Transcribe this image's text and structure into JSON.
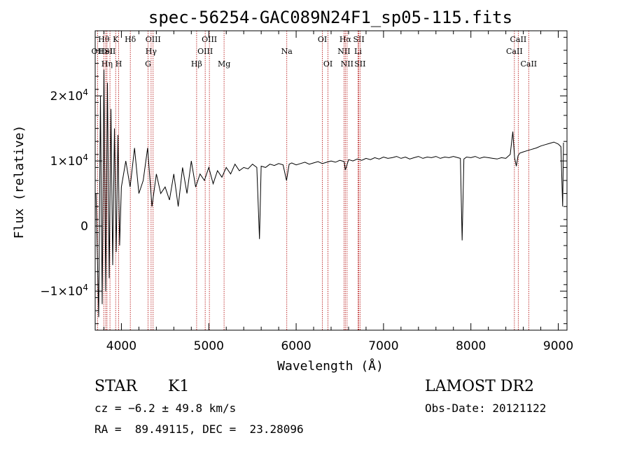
{
  "chart_data": {
    "type": "line",
    "title": "spec-56254-GAC089N24F1_sp05-115.fits",
    "xlabel": "Wavelength (Å)",
    "ylabel": "Flux (relative)",
    "xlim": [
      3700,
      9100
    ],
    "ylim": [
      -16000,
      30000
    ],
    "x_ticks": [
      4000,
      5000,
      6000,
      7000,
      8000,
      9000
    ],
    "x_tick_labels": [
      "4000",
      "5000",
      "6000",
      "7000",
      "8000",
      "9000"
    ],
    "y_ticks": [
      -10000,
      0,
      10000,
      20000
    ],
    "y_tick_labels": [
      {
        "mant": "−1×10",
        "exp": "4"
      },
      {
        "mant": "0",
        "exp": ""
      },
      {
        "mant": "1×10",
        "exp": "4"
      },
      {
        "mant": "2×10",
        "exp": "4"
      }
    ],
    "grid": false,
    "series": [
      {
        "color": "#000000",
        "x": [
          3710,
          3740,
          3760,
          3780,
          3800,
          3820,
          3840,
          3860,
          3880,
          3900,
          3920,
          3940,
          3960,
          3980,
          4000,
          4050,
          4100,
          4150,
          4200,
          4250,
          4300,
          4350,
          4400,
          4450,
          4500,
          4550,
          4600,
          4650,
          4700,
          4750,
          4800,
          4850,
          4900,
          4950,
          5000,
          5050,
          5100,
          5150,
          5200,
          5250,
          5300,
          5350,
          5400,
          5450,
          5500,
          5550,
          5580,
          5600,
          5650,
          5700,
          5750,
          5800,
          5850,
          5890,
          5920,
          5950,
          6000,
          6050,
          6100,
          6150,
          6200,
          6250,
          6300,
          6350,
          6400,
          6450,
          6500,
          6550,
          6563,
          6600,
          6650,
          6700,
          6750,
          6800,
          6850,
          6900,
          6950,
          7000,
          7050,
          7100,
          7150,
          7200,
          7250,
          7300,
          7350,
          7400,
          7450,
          7500,
          7550,
          7600,
          7650,
          7700,
          7750,
          7800,
          7850,
          7880,
          7900,
          7920,
          7950,
          8000,
          8050,
          8100,
          8150,
          8200,
          8250,
          8300,
          8350,
          8400,
          8450,
          8480,
          8500,
          8520,
          8540,
          8560,
          8600,
          8650,
          8700,
          8750,
          8800,
          8850,
          8900,
          8950,
          9000,
          9030,
          9050,
          9060
        ],
        "y": [
          5000,
          -14000,
          20000,
          -12000,
          24000,
          -10000,
          22000,
          -8000,
          18000,
          -6000,
          15000,
          -4000,
          14000,
          -3000,
          6000,
          10000,
          6000,
          12000,
          5000,
          7000,
          12000,
          3000,
          8000,
          5000,
          6000,
          4000,
          8000,
          3000,
          9000,
          5000,
          10000,
          6000,
          8000,
          7000,
          9000,
          6500,
          8500,
          7500,
          9000,
          8000,
          9500,
          8500,
          9000,
          8800,
          9500,
          9000,
          -2000,
          9200,
          9000,
          9500,
          9300,
          9600,
          9400,
          7000,
          9500,
          9700,
          9400,
          9600,
          9800,
          9500,
          9700,
          9900,
          9600,
          9800,
          10000,
          9800,
          10100,
          9900,
          8600,
          10200,
          10000,
          10300,
          10100,
          10400,
          10200,
          10500,
          10300,
          10600,
          10400,
          10500,
          10700,
          10400,
          10600,
          10300,
          10500,
          10700,
          10400,
          10600,
          10500,
          10700,
          10400,
          10600,
          10500,
          10700,
          10500,
          10400,
          -2200,
          10300,
          10600,
          10500,
          10700,
          10400,
          10600,
          10500,
          10400,
          10300,
          10500,
          10400,
          11000,
          14500,
          10500,
          9200,
          10800,
          11200,
          11400,
          11600,
          11800,
          12000,
          12300,
          12500,
          12700,
          12900,
          12600,
          12200,
          3000,
          12800
        ]
      }
    ],
    "line_markers": [
      {
        "label": "OII",
        "x": 3727,
        "row": 1
      },
      {
        "label": "Hθ",
        "x": 3798,
        "row": 0
      },
      {
        "label": "HeI",
        "x": 3820,
        "row": 1
      },
      {
        "label": "Hη",
        "x": 3835,
        "row": 2
      },
      {
        "label": "SII",
        "x": 3869,
        "row": 1
      },
      {
        "label": "K",
        "x": 3934,
        "row": 0
      },
      {
        "label": "H",
        "x": 3969,
        "row": 2
      },
      {
        "label": "Hδ",
        "x": 4102,
        "row": 0
      },
      {
        "label": "OIII",
        "x": 4363,
        "row": 0
      },
      {
        "label": "Hγ",
        "x": 4340,
        "row": 1
      },
      {
        "label": "G",
        "x": 4305,
        "row": 2
      },
      {
        "label": "Hβ",
        "x": 4861,
        "row": 2
      },
      {
        "label": "OIII",
        "x": 5007,
        "row": 0
      },
      {
        "label": "OIII",
        "x": 4959,
        "row": 1
      },
      {
        "label": "Mg",
        "x": 5175,
        "row": 2
      },
      {
        "label": "Na",
        "x": 5893,
        "row": 1
      },
      {
        "label": "OI",
        "x": 6300,
        "row": 0
      },
      {
        "label": "OI",
        "x": 6364,
        "row": 2
      },
      {
        "label": "Hα",
        "x": 6563,
        "row": 0
      },
      {
        "label": "NII",
        "x": 6548,
        "row": 1
      },
      {
        "label": "NII",
        "x": 6583,
        "row": 2
      },
      {
        "label": "SII",
        "x": 6717,
        "row": 0
      },
      {
        "label": "Li",
        "x": 6708,
        "row": 1
      },
      {
        "label": "SII",
        "x": 6731,
        "row": 2
      },
      {
        "label": "CaII",
        "x": 8542,
        "row": 0
      },
      {
        "label": "CaII",
        "x": 8498,
        "row": 1
      },
      {
        "label": "CaII",
        "x": 8662,
        "row": 2
      }
    ],
    "marker_color": "#b00000"
  },
  "info": {
    "object_class": "STAR",
    "subclass": "K1",
    "redshift": "cz = −6.2 ± 49.8 km/s",
    "coords": "RA =  89.49115, DEC =  23.28096",
    "survey": "LAMOST DR2",
    "obs_date": "Obs-Date: 20121122"
  }
}
